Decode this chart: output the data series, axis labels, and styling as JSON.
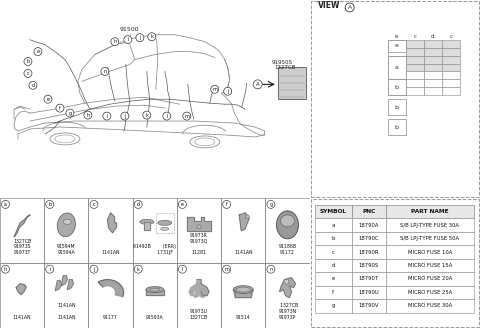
{
  "bg_color": "#ffffff",
  "table_headers": [
    "SYMBOL",
    "PNC",
    "PART NAME"
  ],
  "table_rows": [
    [
      "a",
      "18790A",
      "S/B LPJ-TYPE FUSE 30A"
    ],
    [
      "b",
      "18790C",
      "S/B LPJ-TYPE FUSE 50A"
    ],
    [
      "c",
      "18790R",
      "MICRO FUSE 10A"
    ],
    [
      "d",
      "18790S",
      "MICRO FUSE 15A"
    ],
    [
      "e",
      "18790T",
      "MICRO FUSE 20A"
    ],
    [
      "f",
      "18790U",
      "MICRO FUSE 25A"
    ],
    [
      "g",
      "18790V",
      "MICRO FUSE 30A"
    ]
  ],
  "row1_boxes": [
    {
      "lbl": "a",
      "parts": "1327CB\n91973S\n91973T"
    },
    {
      "lbl": "b",
      "parts": "91594M\n91594A"
    },
    {
      "lbl": "c",
      "parts": "1141AN"
    },
    {
      "lbl": "d",
      "parts": "91492B        (ERR)\n              1731JF"
    },
    {
      "lbl": "e",
      "parts": "91973R\n91973Q\n\n11281"
    },
    {
      "lbl": "f",
      "parts": "1141AN"
    },
    {
      "lbl": "g",
      "parts": "91186B\n91172"
    }
  ],
  "row2_boxes": [
    {
      "lbl": "h",
      "parts": "1141AN"
    },
    {
      "lbl": "i",
      "parts": "1141AN\n\n1141AN"
    },
    {
      "lbl": "j",
      "parts": "91177"
    },
    {
      "lbl": "k",
      "parts": "91593A"
    },
    {
      "lbl": "l",
      "parts": "91973U\n1327CB"
    },
    {
      "lbl": "m",
      "parts": "91514"
    },
    {
      "lbl": "n",
      "parts": "  1327CB\n91973N\n91973P"
    }
  ],
  "view_label": "VIEW",
  "car_labels_around": [
    "a",
    "b",
    "c",
    "d",
    "e",
    "f",
    "g",
    "h",
    "i",
    "j",
    "k",
    "l",
    "m",
    "n"
  ],
  "main_labels": [
    "91500",
    "91950S",
    "1327CB"
  ]
}
